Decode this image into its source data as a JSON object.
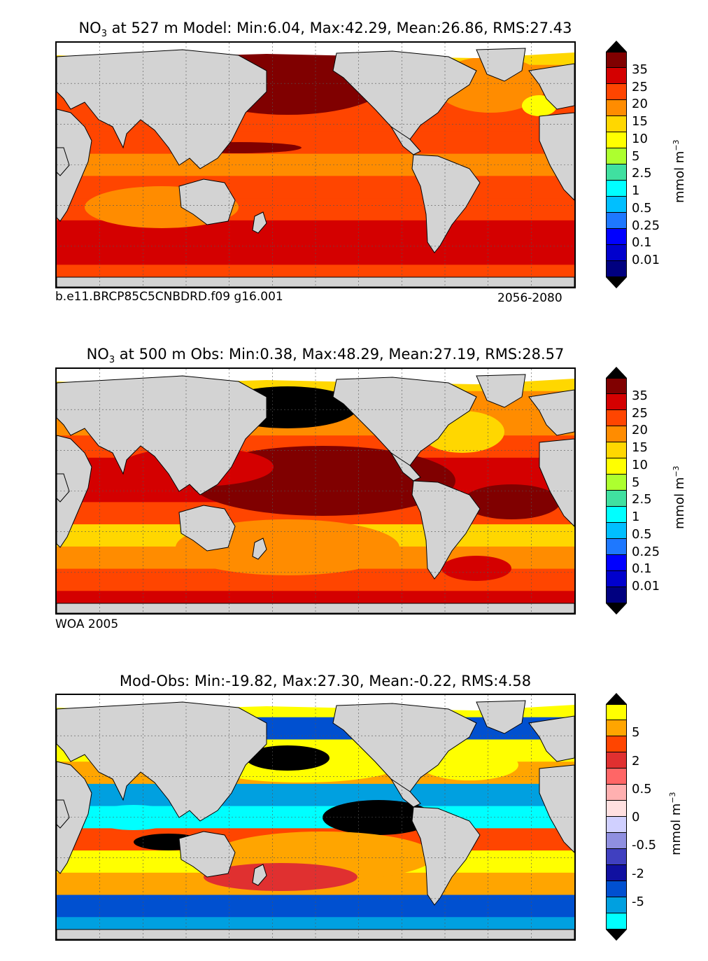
{
  "panels": [
    {
      "id": "model",
      "title_prefix": "NO",
      "title_sub": "3",
      "title_rest": " at 527 m Model: Min:6.04, Max:42.29, Mean:26.86, RMS:27.43",
      "note_left": "b.e11.BRCP85C5CNBDRD.f09 g16.001",
      "note_right": "2056-2080",
      "stats": {
        "min": 6.04,
        "max": 42.29,
        "mean": 26.86,
        "rms": 27.43
      }
    },
    {
      "id": "obs",
      "title_prefix": "NO",
      "title_sub": "3",
      "title_rest": " at 500 m Obs: Min:0.38, Max:48.29, Mean:27.19, RMS:28.57",
      "note_left": "WOA 2005",
      "note_right": "",
      "stats": {
        "min": 0.38,
        "max": 48.29,
        "mean": 27.19,
        "rms": 28.57
      }
    },
    {
      "id": "diff",
      "title_prefix": "",
      "title_sub": "",
      "title_rest": "Mod-Obs: Min:-19.82, Max:27.30, Mean:-0.22, RMS:4.58",
      "note_left": "",
      "note_right": "",
      "stats": {
        "min": -19.82,
        "max": 27.3,
        "mean": -0.22,
        "rms": 4.58
      }
    }
  ],
  "colorbar_abs": {
    "ticks": [
      "35",
      "25",
      "20",
      "15",
      "10",
      "5",
      "2.5",
      "1",
      "0.5",
      "0.25",
      "0.1",
      "0.01"
    ],
    "colors": [
      "#800000",
      "#d40000",
      "#ff4500",
      "#ff8c00",
      "#ffd700",
      "#ffff00",
      "#adff2f",
      "#40e0a0",
      "#00ffff",
      "#00bfff",
      "#1e78ff",
      "#0000ff",
      "#0000cd",
      "#000080"
    ],
    "upper": "#000000",
    "lower": "#000000",
    "unit_main": "mmol m",
    "unit_sup": "−3"
  },
  "colorbar_diff": {
    "ticks": [
      "5",
      "2",
      "0.5",
      "0",
      "-0.5",
      "-2",
      "-5"
    ],
    "colors": [
      "#ffff00",
      "#ffa500",
      "#ff4500",
      "#e03030",
      "#ff6666",
      "#ffb0b0",
      "#ffe0e0",
      "#d0d0ff",
      "#9090e0",
      "#4040c0",
      "#1010a0",
      "#0050d0",
      "#00a0e0",
      "#00ffff"
    ],
    "upper": "#000000",
    "lower": "#000000",
    "unit_main": "mmol m",
    "unit_sup": "−3"
  },
  "map_colors": {
    "land": "#d3d3d3",
    "ice": "#ffffff",
    "coast": "#000000",
    "grid": "#555555"
  }
}
